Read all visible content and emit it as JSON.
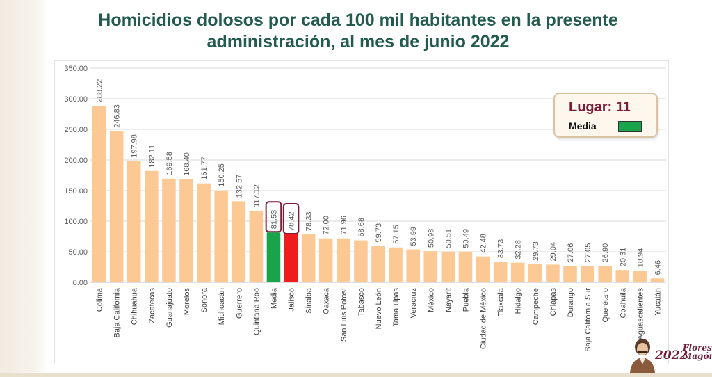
{
  "slide": {
    "title": "Homicidios dolosos por cada 100 mil habitantes en la presente administración, al mes de junio 2022"
  },
  "legend": {
    "title": "Lugar: 11",
    "label": "Media",
    "swatch_color": "#19a34a"
  },
  "logo": {
    "year": "2022",
    "name_line1": "Flores",
    "name_line2": "Magón"
  },
  "colors": {
    "bar_default": "#fcc995",
    "bar_media": "#19a34a",
    "bar_jalisco": "#ee1c1c",
    "title": "#235b4e",
    "highlight_box": "#7b1c36"
  },
  "chart_data": {
    "type": "bar",
    "title": "Homicidios dolosos por cada 100 mil habitantes en la presente administración, al mes de junio 2022",
    "xlabel": "",
    "ylabel": "",
    "ylim": [
      0,
      350
    ],
    "yticks": [
      "0.00",
      "50.00",
      "100.00",
      "150.00",
      "200.00",
      "250.00",
      "300.00",
      "350.00"
    ],
    "grid": true,
    "legend_position": "top-right",
    "highlighted": [
      "Media",
      "Jalisco"
    ],
    "categories": [
      "Colima",
      "Baja California",
      "Chihuahua",
      "Zacatecas",
      "Guanajuato",
      "Morelos",
      "Sonora",
      "Michoacán",
      "Guerrero",
      "Quintana Roo",
      "Media",
      "Jalisco",
      "Sinaloa",
      "Oaxaca",
      "San Luis Potosí",
      "Tabasco",
      "Nuevo León",
      "Tamaulipas",
      "Veracruz",
      "México",
      "Nayarit",
      "Puebla",
      "Ciudad de México",
      "Tlaxcala",
      "Hidalgo",
      "Campeche",
      "Chiapas",
      "Durango",
      "Baja California Sur",
      "Querétaro",
      "Coahuila",
      "Aguascalientes",
      "Yucatán"
    ],
    "values": [
      288.22,
      246.83,
      197.98,
      182.11,
      169.58,
      168.4,
      161.77,
      150.25,
      132.57,
      117.12,
      81.53,
      78.42,
      78.33,
      72.0,
      71.96,
      68.68,
      59.73,
      57.15,
      53.99,
      50.98,
      50.51,
      50.49,
      42.48,
      33.73,
      32.28,
      29.73,
      29.04,
      27.06,
      27.05,
      26.9,
      20.31,
      18.94,
      6.46
    ],
    "value_labels": [
      "288.22",
      "246.83",
      "197.98",
      "182.11",
      "169.58",
      "168.40",
      "161.77",
      "150.25",
      "132.57",
      "117.12",
      "81.53",
      "78.42",
      "78.33",
      "72.00",
      "71.96",
      "68.68",
      "59.73",
      "57.15",
      "53.99",
      "50.98",
      "50.51",
      "50.49",
      "42.48",
      "33.73",
      "32.28",
      "29.73",
      "29.04",
      "27.06",
      "27.05",
      "26.90",
      "20.31",
      "18.94",
      "6.46"
    ]
  }
}
